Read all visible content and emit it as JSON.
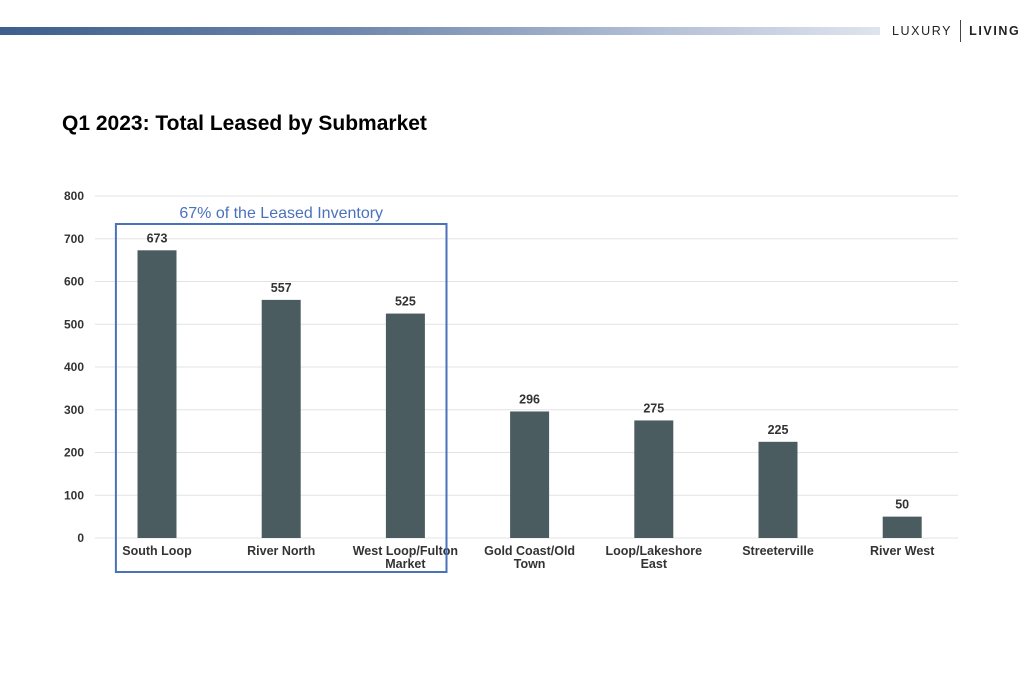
{
  "brand": {
    "word_a": "LUXURY",
    "word_b": "LIVING"
  },
  "colors": {
    "bar": "#4b5c61",
    "grid": "#e3e3e3",
    "annotation": "#4a72bb",
    "accent_bar": "#3d5f8c"
  },
  "chart_data": {
    "type": "bar",
    "title": "Q1 2023: Total Leased by Submarket",
    "xlabel": "",
    "ylabel": "",
    "ylim": [
      0,
      800
    ],
    "yticks": [
      0,
      100,
      200,
      300,
      400,
      500,
      600,
      700,
      800
    ],
    "grid": true,
    "categories": [
      [
        "South Loop"
      ],
      [
        "River North"
      ],
      [
        "West Loop/Fulton",
        "Market"
      ],
      [
        "Gold Coast/Old",
        "Town"
      ],
      [
        "Loop/Lakeshore",
        "East"
      ],
      [
        "Streeterville"
      ],
      [
        "River West"
      ]
    ],
    "values": [
      673,
      557,
      525,
      296,
      275,
      225,
      50
    ],
    "annotation": {
      "text": "67% of the Leased Inventory",
      "covers_categories": [
        0,
        1,
        2
      ]
    }
  }
}
